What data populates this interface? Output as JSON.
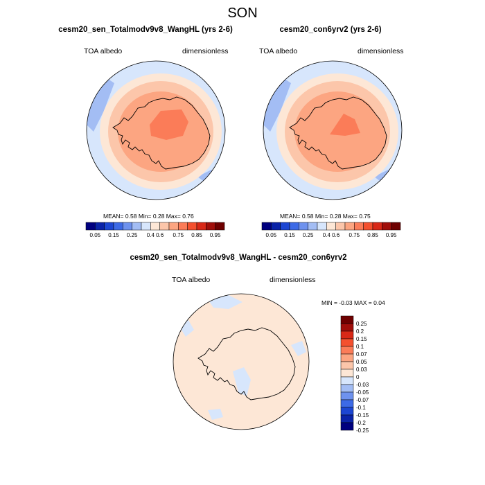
{
  "season": "SON",
  "colors": {
    "abs_colors": [
      "#00007f",
      "#0a23a8",
      "#1c46d2",
      "#3d6ae6",
      "#6e92ee",
      "#a3bdf4",
      "#d7e6fc",
      "#fde7d6",
      "#fcc6aa",
      "#fca581",
      "#fb7c58",
      "#f4502e",
      "#d82817",
      "#a00e0a",
      "#6e0000"
    ],
    "diff_colors": [
      "#6e0000",
      "#a00e0a",
      "#d82817",
      "#f4502e",
      "#fb7c58",
      "#fca581",
      "#fcc6aa",
      "#fde7d6",
      "#d7e6fc",
      "#a3bdf4",
      "#6e92ee",
      "#3d6ae6",
      "#1c46d2",
      "#0a23a8",
      "#00007f"
    ]
  },
  "chart_data": [
    {
      "type": "heatmap",
      "projection": "polar stereographic (south pole)",
      "title": "cesm20_sen_Totalmodv9v8_WangHL (yrs 2-6)",
      "variable": "TOA albedo",
      "units": "dimensionless",
      "stats": {
        "mean_label": "MEAN=",
        "mean": "0.58",
        "min_label": "Min=",
        "min": "0.28",
        "max_label": "Max=",
        "max": "0.76"
      },
      "colorbar_ticks": [
        "0.05",
        "0.15",
        "0.25",
        "0.4",
        "0.6",
        "0.75",
        "0.85",
        "0.95"
      ]
    },
    {
      "type": "heatmap",
      "projection": "polar stereographic (south pole)",
      "title": "cesm20_con6yrv2 (yrs 2-6)",
      "variable": "TOA albedo",
      "units": "dimensionless",
      "stats": {
        "mean_label": "MEAN=",
        "mean": "0.58",
        "min_label": "Min=",
        "min": "0.28",
        "max_label": "Max=",
        "max": "0.75"
      },
      "colorbar_ticks": [
        "0.05",
        "0.15",
        "0.25",
        "0.4",
        "0.6",
        "0.75",
        "0.85",
        "0.95"
      ]
    },
    {
      "type": "heatmap",
      "projection": "polar stereographic (south pole)",
      "title": "cesm20_sen_Totalmodv9v8_WangHL - cesm20_con6yrv2",
      "variable": "TOA albedo",
      "units": "dimensionless",
      "stats": {
        "min_label": "MIN =",
        "min": "-0.03",
        "max_label": "MAX =",
        "max": "0.04"
      },
      "colorbar_ticks": [
        "0.25",
        "0.2",
        "0.15",
        "0.1",
        "0.07",
        "0.05",
        "0.03",
        "0",
        "-0.03",
        "-0.05",
        "-0.07",
        "-0.1",
        "-0.15",
        "-0.2",
        "-0.25"
      ]
    }
  ]
}
